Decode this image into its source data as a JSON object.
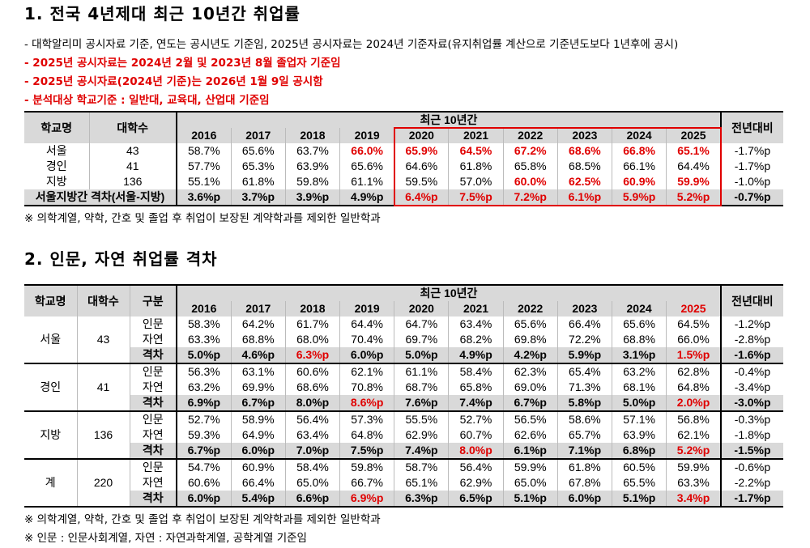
{
  "section1": {
    "title": "1. 전국 4년제대 최근 10년간 취업률",
    "notes": [
      "- 대학알리미 공시자료 기준, 연도는 공시년도 기준임, 2025년 공시자료는 2024년 기준자료(유지취업률 계산으로 기준년도보다 1년후에 공시)",
      "- 2025년 공시자료는 2024년 2월 및 2023년 8월 졸업자 기준임",
      "- 2025년 공시자료(2024년 기준)는 2026년 1월 9일 공시함",
      "- 분석대상 학교기준 : 일반대, 교육대, 산업대 기준임"
    ],
    "headers": {
      "school": "학교명",
      "count": "대학수",
      "period": "최근 10년간",
      "change": "전년대비"
    },
    "years": [
      "2016",
      "2017",
      "2018",
      "2019",
      "2020",
      "2021",
      "2022",
      "2023",
      "2024",
      "2025"
    ],
    "rows": [
      {
        "name": "서울",
        "count": "43",
        "values": [
          "58.7%",
          "65.6%",
          "63.7%",
          "66.0%",
          "65.9%",
          "64.5%",
          "67.2%",
          "68.6%",
          "66.8%",
          "65.1%"
        ],
        "red": [
          3,
          4,
          5,
          6,
          7,
          8,
          9
        ],
        "change": "-1.7%p"
      },
      {
        "name": "경인",
        "count": "41",
        "values": [
          "57.7%",
          "65.3%",
          "63.9%",
          "65.6%",
          "64.6%",
          "61.8%",
          "65.8%",
          "68.5%",
          "66.1%",
          "64.4%"
        ],
        "red": [],
        "change": "-1.7%p"
      },
      {
        "name": "지방",
        "count": "136",
        "values": [
          "55.1%",
          "61.8%",
          "59.8%",
          "61.1%",
          "59.5%",
          "57.0%",
          "60.0%",
          "62.5%",
          "60.9%",
          "59.9%"
        ],
        "red": [
          6,
          7,
          8,
          9
        ],
        "change": "-1.0%p"
      }
    ],
    "gap": {
      "label": "서울지방간 격차(서울-지방)",
      "values": [
        "3.6%p",
        "3.7%p",
        "3.9%p",
        "4.9%p",
        "6.4%p",
        "7.5%p",
        "7.2%p",
        "6.1%p",
        "5.9%p",
        "5.2%p"
      ],
      "red": [
        4,
        5,
        6,
        7,
        8,
        9
      ],
      "change": "-0.7%p"
    },
    "footnote": "※ 의학계열, 약학, 간호 및 졸업 후 취업이 보장된 계약학과를 제외한 일반학과"
  },
  "section2": {
    "title": "2. 인문, 자연 취업률 격차",
    "headers": {
      "school": "학교명",
      "count": "대학수",
      "type": "구분",
      "period": "최근 10년간",
      "change": "전년대비"
    },
    "years": [
      "2016",
      "2017",
      "2018",
      "2019",
      "2020",
      "2021",
      "2022",
      "2023",
      "2024",
      "2025"
    ],
    "red_year": "2025",
    "groups": [
      {
        "name": "서울",
        "count": "43",
        "rows": [
          {
            "type": "인문",
            "values": [
              "58.3%",
              "64.2%",
              "61.7%",
              "64.4%",
              "64.7%",
              "63.4%",
              "65.6%",
              "66.4%",
              "65.6%",
              "64.5%"
            ],
            "change": "-1.2%p"
          },
          {
            "type": "자연",
            "values": [
              "63.3%",
              "68.8%",
              "68.0%",
              "70.4%",
              "69.7%",
              "68.2%",
              "69.8%",
              "72.2%",
              "68.8%",
              "66.0%"
            ],
            "change": "-2.8%p"
          },
          {
            "type": "격차",
            "values": [
              "5.0%p",
              "4.6%p",
              "6.3%p",
              "6.0%p",
              "5.0%p",
              "4.9%p",
              "4.2%p",
              "5.9%p",
              "3.1%p",
              "1.5%p"
            ],
            "red": [
              2,
              9
            ],
            "change": "-1.6%p"
          }
        ]
      },
      {
        "name": "경인",
        "count": "41",
        "rows": [
          {
            "type": "인문",
            "values": [
              "56.3%",
              "63.1%",
              "60.6%",
              "62.1%",
              "61.1%",
              "58.4%",
              "62.3%",
              "65.4%",
              "63.2%",
              "62.8%"
            ],
            "change": "-0.4%p"
          },
          {
            "type": "자연",
            "values": [
              "63.2%",
              "69.9%",
              "68.6%",
              "70.8%",
              "68.7%",
              "65.8%",
              "69.0%",
              "71.3%",
              "68.1%",
              "64.8%"
            ],
            "change": "-3.4%p"
          },
          {
            "type": "격차",
            "values": [
              "6.9%p",
              "6.7%p",
              "8.0%p",
              "8.6%p",
              "7.6%p",
              "7.4%p",
              "6.7%p",
              "5.8%p",
              "5.0%p",
              "2.0%p"
            ],
            "red": [
              3,
              9
            ],
            "change": "-3.0%p"
          }
        ]
      },
      {
        "name": "지방",
        "count": "136",
        "rows": [
          {
            "type": "인문",
            "values": [
              "52.7%",
              "58.9%",
              "56.4%",
              "57.3%",
              "55.5%",
              "52.7%",
              "56.5%",
              "58.6%",
              "57.1%",
              "56.8%"
            ],
            "change": "-0.3%p"
          },
          {
            "type": "자연",
            "values": [
              "59.3%",
              "64.9%",
              "63.4%",
              "64.8%",
              "62.9%",
              "60.7%",
              "62.6%",
              "65.7%",
              "63.9%",
              "62.1%"
            ],
            "change": "-1.8%p"
          },
          {
            "type": "격차",
            "values": [
              "6.7%p",
              "6.0%p",
              "7.0%p",
              "7.5%p",
              "7.4%p",
              "8.0%p",
              "6.1%p",
              "7.1%p",
              "6.8%p",
              "5.2%p"
            ],
            "red": [
              5,
              9
            ],
            "change": "-1.5%p"
          }
        ]
      },
      {
        "name": "계",
        "count": "220",
        "rows": [
          {
            "type": "인문",
            "values": [
              "54.7%",
              "60.9%",
              "58.4%",
              "59.8%",
              "58.7%",
              "56.4%",
              "59.9%",
              "61.8%",
              "60.5%",
              "59.9%"
            ],
            "change": "-0.6%p"
          },
          {
            "type": "자연",
            "values": [
              "60.6%",
              "66.4%",
              "65.0%",
              "66.7%",
              "65.1%",
              "62.9%",
              "65.0%",
              "67.8%",
              "65.5%",
              "63.3%"
            ],
            "change": "-2.2%p"
          },
          {
            "type": "격차",
            "values": [
              "6.0%p",
              "5.4%p",
              "6.6%p",
              "6.9%p",
              "6.3%p",
              "6.5%p",
              "5.1%p",
              "6.0%p",
              "5.1%p",
              "3.4%p"
            ],
            "red": [
              3,
              9
            ],
            "change": "-1.7%p"
          }
        ]
      }
    ],
    "footnotes": [
      "※ 의학계열, 약학, 간호 및 졸업 후 취업이 보장된 계약학과를 제외한 일반학과",
      "※ 인문 : 인문사회계열, 자연 : 자연과학계열, 공학계열 기준임"
    ]
  },
  "colors": {
    "red": "#e00000",
    "header_bg": "#d9d9d9"
  }
}
